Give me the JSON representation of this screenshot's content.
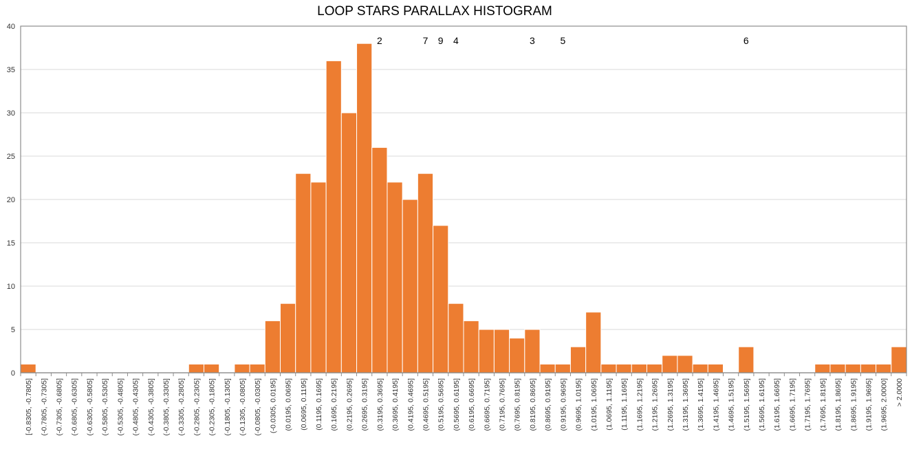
{
  "chart_data": {
    "type": "bar",
    "title": "LOOP STARS PARALLAX HISTOGRAM",
    "xlabel": "",
    "ylabel": "",
    "ylim": [
      0,
      40
    ],
    "yticks": [
      0,
      5,
      10,
      15,
      20,
      25,
      30,
      35,
      40
    ],
    "grid": true,
    "bar_color": "#ED7D31",
    "categories": [
      "[-0.8305, -0.7805]",
      "(-0.7805, -0.7305]",
      "(-0.7305, -0.6805]",
      "(-0.6805, -0.6305]",
      "(-0.6305, -0.5805]",
      "(-0.5805, -0.5305]",
      "(-0.5305, -0.4805]",
      "(-0.4805, -0.4305]",
      "(-0.4305, -0.3805]",
      "(-0.3805, -0.3305]",
      "(-0.3305, -0.2805]",
      "(-0.2805, -0.2305]",
      "(-0.2305, -0.1805]",
      "(-0.1805, -0.1305]",
      "(-0.1305, -0.0805]",
      "(-0.0805, -0.0305]",
      "(-0.0305, 0.0195]",
      "(0.0195, 0.0695]",
      "(0.0695, 0.1195]",
      "(0.1195, 0.1695]",
      "(0.1695, 0.2195]",
      "(0.2195, 0.2695]",
      "(0.2695, 0.3195]",
      "(0.3195, 0.3695]",
      "(0.3695, 0.4195]",
      "(0.4195, 0.4695]",
      "(0.4695, 0.5195]",
      "(0.5195, 0.5695]",
      "(0.5695, 0.6195]",
      "(0.6195, 0.6695]",
      "(0.6695, 0.7195]",
      "(0.7195, 0.7695]",
      "(0.7695, 0.8195]",
      "(0.8195, 0.8695]",
      "(0.8695, 0.9195]",
      "(0.9195, 0.9695]",
      "(0.9695, 1.0195]",
      "(1.0195, 1.0695]",
      "(1.0695, 1.1195]",
      "(1.1195, 1.1695]",
      "(1.1695, 1.2195]",
      "(1.2195, 1.2695]",
      "(1.2695, 1.3195]",
      "(1.3195, 1.3695]",
      "(1.3695, 1.4195]",
      "(1.4195, 1.4695]",
      "(1.4695, 1.5195]",
      "(1.5195, 1.5695]",
      "(1.5695, 1.6195]",
      "(1.6195, 1.6695]",
      "(1.6695, 1.7195]",
      "(1.7195, 1.7695]",
      "(1.7695, 1.8195]",
      "(1.8195, 1.8695]",
      "(1.8695, 1.9195]",
      "(1.9195, 1.9695]",
      "(1.9695, 2.0000]",
      "> 2.0000"
    ],
    "values": [
      1,
      0,
      0,
      0,
      0,
      0,
      0,
      0,
      0,
      0,
      0,
      1,
      1,
      0,
      1,
      1,
      6,
      8,
      23,
      22,
      36,
      30,
      38,
      26,
      22,
      20,
      23,
      17,
      8,
      6,
      5,
      5,
      4,
      5,
      1,
      1,
      3,
      7,
      1,
      1,
      1,
      1,
      2,
      2,
      1,
      1,
      0,
      3,
      0,
      0,
      0,
      0,
      1,
      1,
      1,
      1,
      1,
      3
    ],
    "annotations": [
      {
        "text": "2",
        "category_index": 23
      },
      {
        "text": "7",
        "category_index": 26
      },
      {
        "text": "9",
        "category_index": 27
      },
      {
        "text": "4",
        "category_index": 28
      },
      {
        "text": "3",
        "category_index": 33
      },
      {
        "text": "5",
        "category_index": 35
      },
      {
        "text": "6",
        "category_index": 47
      }
    ]
  }
}
